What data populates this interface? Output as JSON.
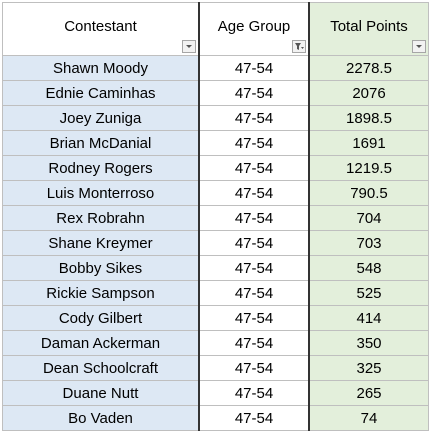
{
  "table": {
    "header": [
      "Contestant",
      "Age Group",
      "Total Points"
    ],
    "rows": [
      [
        "Shawn Moody",
        "47-54",
        2278.5
      ],
      [
        "Ednie Caminhas",
        "47-54",
        2076
      ],
      [
        "Joey Zuniga",
        "47-54",
        1898.5
      ],
      [
        "Brian McDanial",
        "47-54",
        1691
      ],
      [
        "Rodney Rogers",
        "47-54",
        1219.5
      ],
      [
        "Luis Monterroso",
        "47-54",
        790.5
      ],
      [
        "Rex Robrahn",
        "47-54",
        704
      ],
      [
        "Shane Kreymer",
        "47-54",
        703
      ],
      [
        "Bobby Sikes",
        "47-54",
        548
      ],
      [
        "Rickie Sampson",
        "47-54",
        525
      ],
      [
        "Cody Gilbert",
        "47-54",
        414
      ],
      [
        "Daman Ackerman",
        "47-54",
        350
      ],
      [
        "Dean Schoolcraft",
        "47-54",
        325
      ],
      [
        "Duane Nutt",
        "47-54",
        265
      ],
      [
        "Bo Vaden",
        "47-54",
        74
      ]
    ]
  }
}
